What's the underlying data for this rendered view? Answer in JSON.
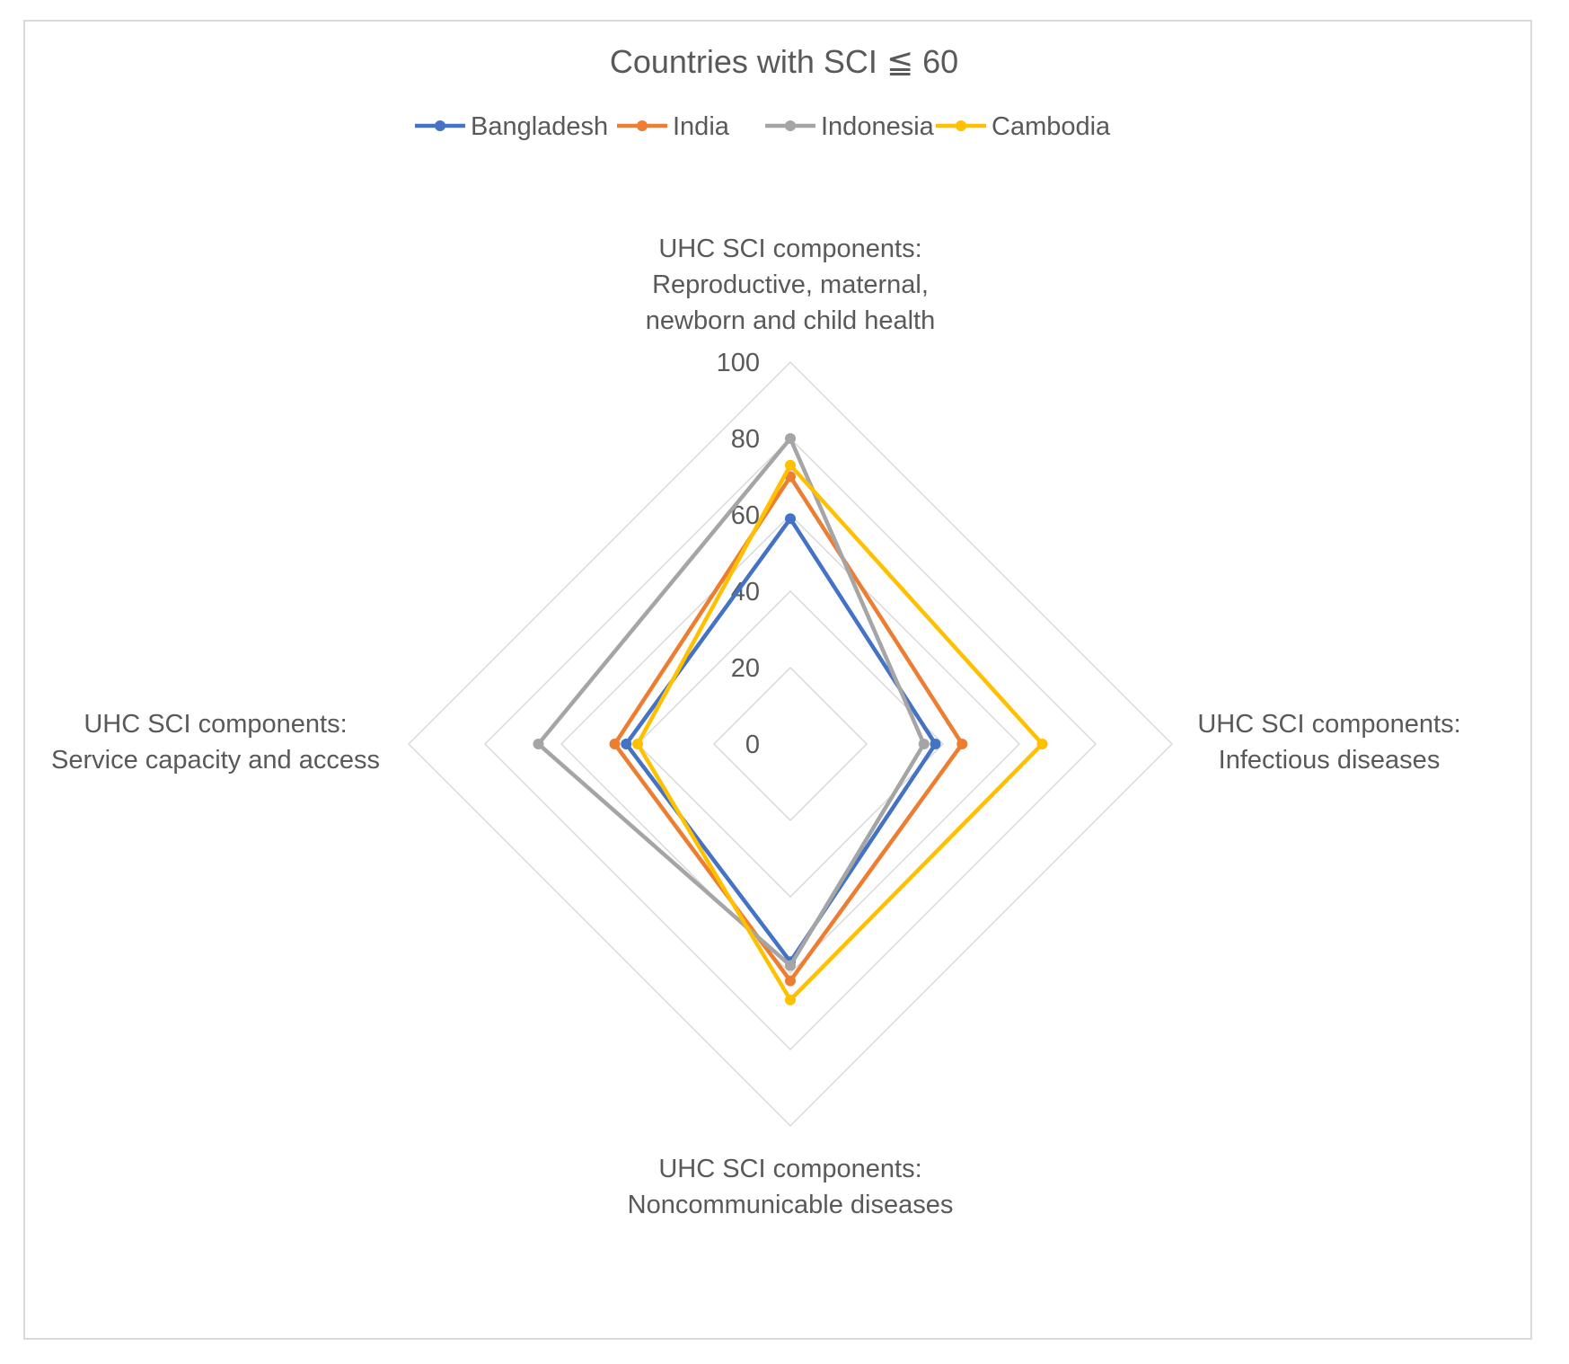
{
  "chart_data": {
    "type": "radar",
    "title": "Countries with SCI ≦ 60",
    "axes": [
      [
        "UHC SCI components:",
        "Reproductive, maternal,",
        "newborn and child health"
      ],
      [
        "UHC SCI components:",
        "Infectious diseases"
      ],
      [
        "UHC SCI components:",
        "Noncommunicable diseases"
      ],
      [
        "UHC SCI components:",
        "Service capacity and access"
      ]
    ],
    "rlim": [
      0,
      100
    ],
    "ticks": [
      "0",
      "20",
      "40",
      "60",
      "80",
      "100"
    ],
    "tick_values": [
      0,
      20,
      40,
      60,
      80,
      100
    ],
    "legend_position": "top",
    "grid": true,
    "series": [
      {
        "name": "Bangladesh",
        "color": "#4472C4",
        "values": [
          59,
          38,
          57,
          43
        ]
      },
      {
        "name": "India",
        "color": "#ED7D31",
        "values": [
          70,
          45,
          62,
          46
        ]
      },
      {
        "name": "Indonesia",
        "color": "#A5A5A5",
        "values": [
          80,
          35,
          58,
          66
        ]
      },
      {
        "name": "Cambodia",
        "color": "#FFC000",
        "values": [
          73,
          66,
          67,
          40
        ]
      }
    ]
  }
}
